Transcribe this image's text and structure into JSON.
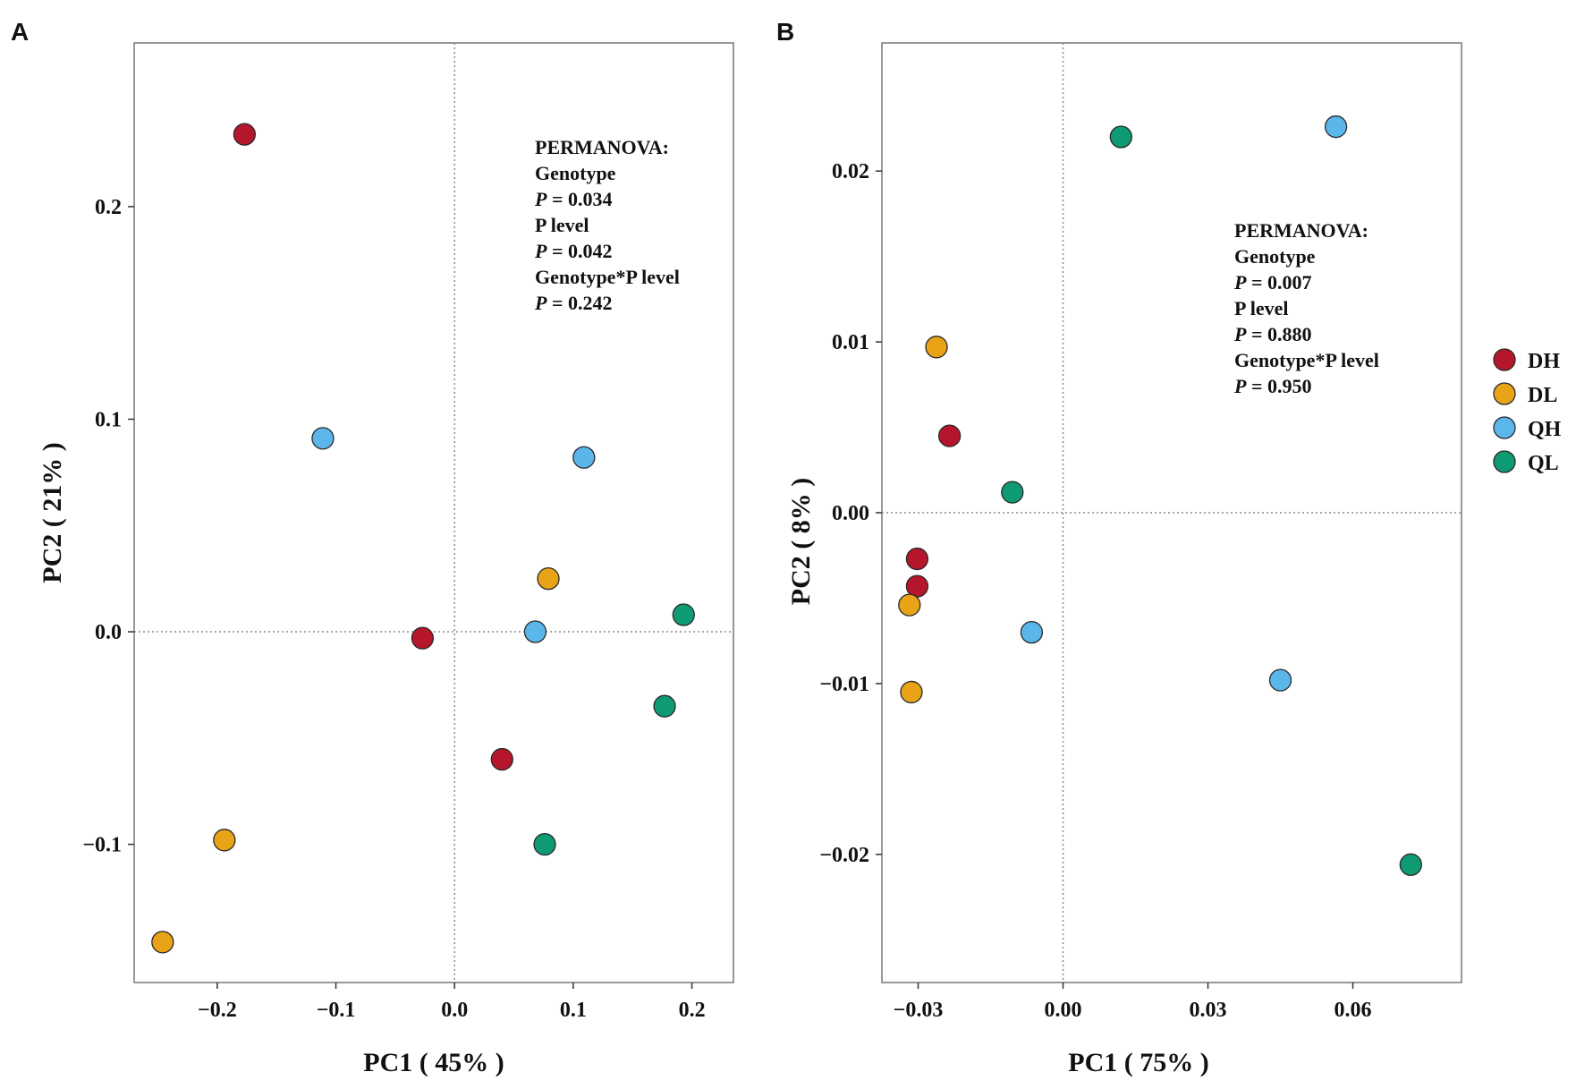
{
  "colors": {
    "DH": "#B5162B",
    "DL": "#E8A317",
    "QH": "#5BB6EA",
    "QL": "#0E9A73"
  },
  "legend": [
    {
      "label": "DH",
      "color_key": "DH"
    },
    {
      "label": "DL",
      "color_key": "DL"
    },
    {
      "label": "QH",
      "color_key": "QH"
    },
    {
      "label": "QL",
      "color_key": "QL"
    }
  ],
  "chart_data": [
    {
      "panel": "A",
      "type": "scatter",
      "xlabel": "PC1 ( 45% )",
      "ylabel": "PC2 ( 21% )",
      "xlim": [
        -0.27,
        0.235
      ],
      "ylim": [
        -0.165,
        0.277
      ],
      "xticks": [
        -0.2,
        -0.1,
        0.0,
        0.1,
        0.2
      ],
      "xtick_labels": [
        "−0.2",
        "−0.1",
        "0.0",
        "0.1",
        "0.2"
      ],
      "yticks": [
        -0.1,
        0.0,
        0.1,
        0.2
      ],
      "ytick_labels": [
        "−0.1",
        "0.0",
        "0.1",
        "0.2"
      ],
      "reference_lines": {
        "x": 0,
        "y": 0
      },
      "annotation": [
        "PERMANOVA:",
        "Genotype",
        "P = 0.034",
        "P level",
        "P = 0.042",
        "Genotype*P level",
        "P = 0.242"
      ],
      "series": [
        {
          "name": "DH",
          "points": [
            [
              -0.177,
              0.234
            ],
            [
              -0.027,
              -0.003
            ],
            [
              0.04,
              -0.06
            ]
          ]
        },
        {
          "name": "DL",
          "points": [
            [
              -0.194,
              -0.098
            ],
            [
              -0.246,
              -0.146
            ],
            [
              0.079,
              0.025
            ]
          ]
        },
        {
          "name": "QH",
          "points": [
            [
              -0.111,
              0.091
            ],
            [
              0.109,
              0.082
            ],
            [
              0.068,
              0.0
            ]
          ]
        },
        {
          "name": "QL",
          "points": [
            [
              0.193,
              0.008
            ],
            [
              0.177,
              -0.035
            ],
            [
              0.076,
              -0.1
            ]
          ]
        }
      ]
    },
    {
      "panel": "B",
      "type": "scatter",
      "xlabel": "PC1 ( 75% )",
      "ylabel": "PC2 ( 8% )",
      "xlim": [
        -0.0375,
        0.0825
      ],
      "ylim": [
        -0.0275,
        0.0275
      ],
      "xticks": [
        -0.03,
        0.0,
        0.03,
        0.06
      ],
      "xtick_labels": [
        "−0.03",
        "0.00",
        "0.03",
        "0.06"
      ],
      "yticks": [
        -0.02,
        -0.01,
        0.0,
        0.01,
        0.02
      ],
      "ytick_labels": [
        "−0.02",
        "−0.01",
        "0.00",
        "0.01",
        "0.02"
      ],
      "reference_lines": {
        "x": 0,
        "y": 0
      },
      "annotation": [
        "PERMANOVA:",
        "Genotype",
        "P = 0.007",
        "P level",
        "P = 0.880",
        "Genotype*P level",
        "P = 0.950"
      ],
      "series": [
        {
          "name": "DH",
          "points": [
            [
              -0.0235,
              0.0045
            ],
            [
              -0.0302,
              -0.0027
            ],
            [
              -0.0302,
              -0.0043
            ]
          ]
        },
        {
          "name": "DL",
          "points": [
            [
              -0.0262,
              0.0097
            ],
            [
              -0.0318,
              -0.0054
            ],
            [
              -0.0314,
              -0.0105
            ]
          ]
        },
        {
          "name": "QH",
          "points": [
            [
              0.0565,
              0.0226
            ],
            [
              -0.0065,
              -0.007
            ],
            [
              0.045,
              -0.0098
            ]
          ]
        },
        {
          "name": "QL",
          "points": [
            [
              0.012,
              0.022
            ],
            [
              -0.0105,
              0.0012
            ],
            [
              0.072,
              -0.0206
            ]
          ]
        }
      ]
    }
  ]
}
